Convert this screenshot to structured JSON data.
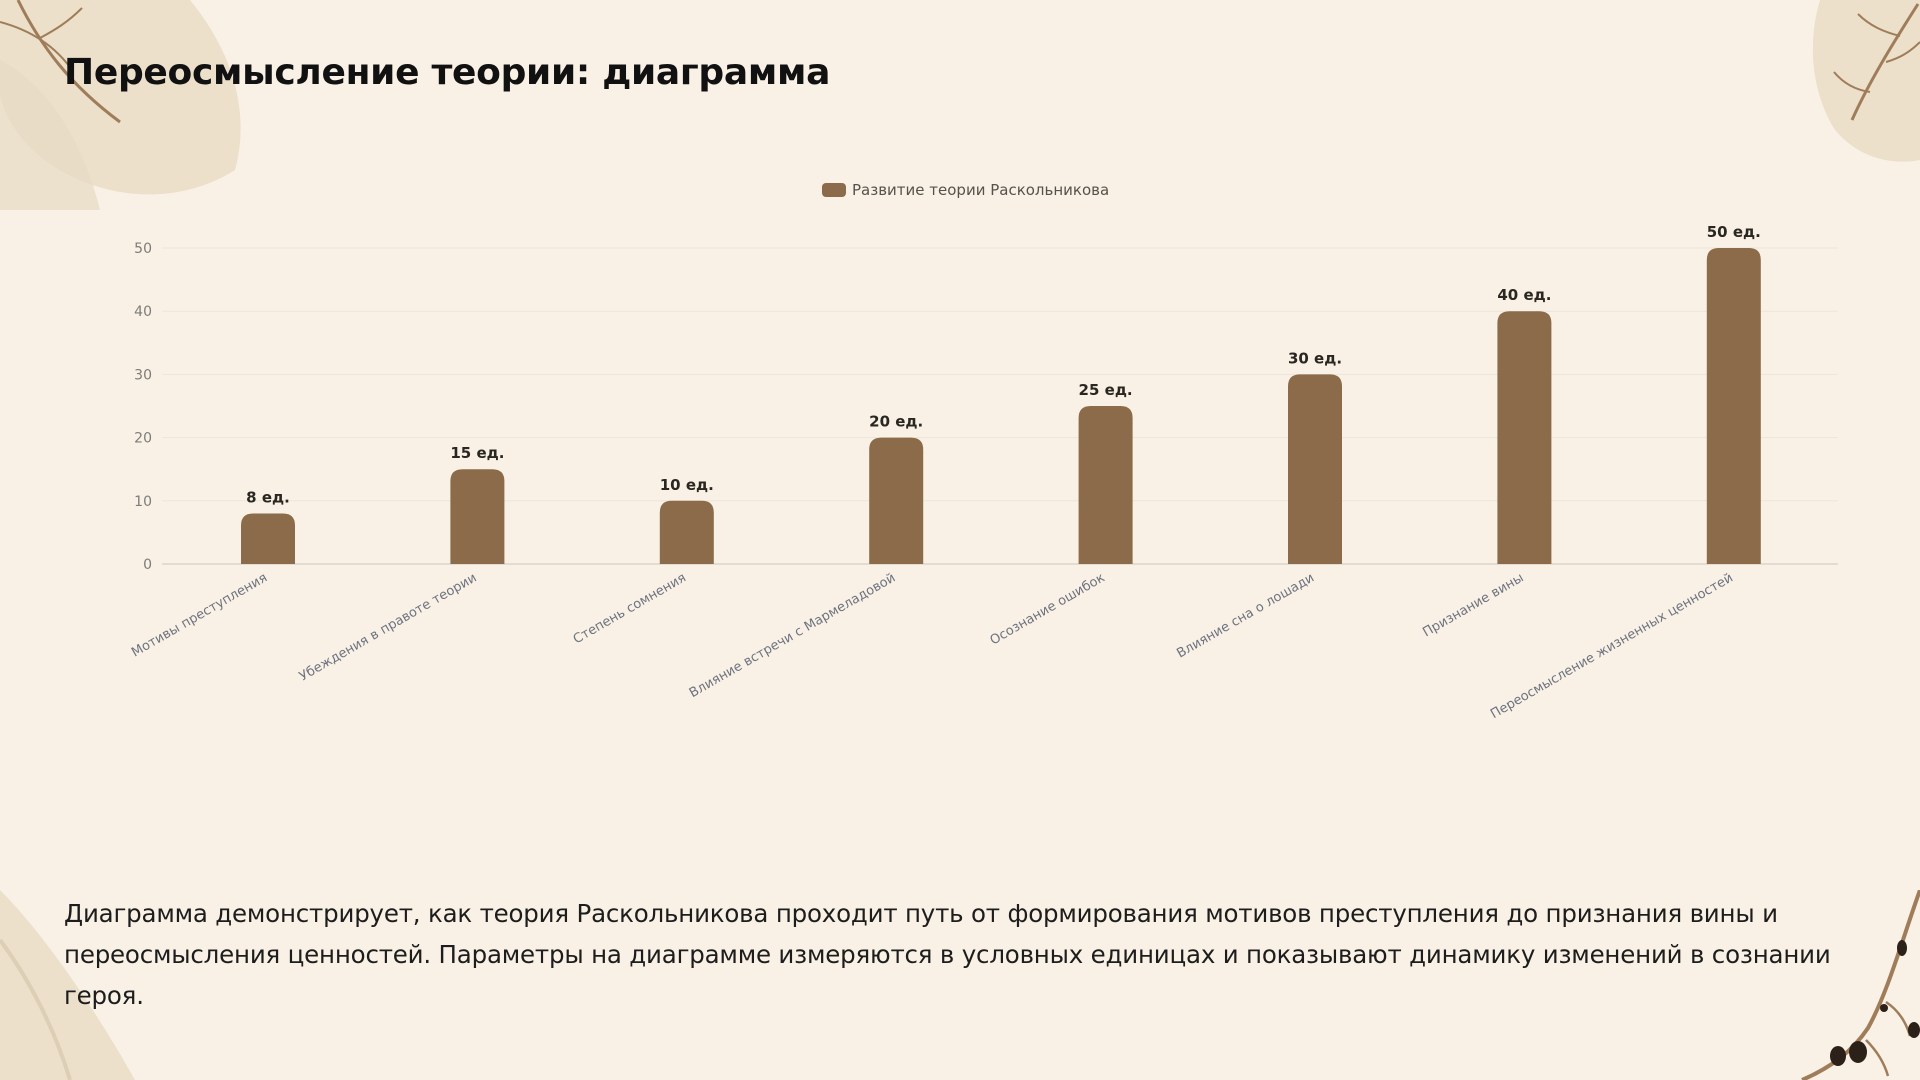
{
  "slide": {
    "title": "Переосмысление теории: диаграмма",
    "description": "Диаграмма демонстрирует, как теория Раскольникова проходит путь от формирования мотивов преступления до признания вины и переосмысления ценностей. Параметры на диаграмме измеряются в условных единицах и показывают динамику изменений в сознании героя."
  },
  "colors": {
    "background": "#f9f1e5",
    "bar": "#8b6b4a",
    "leaf": "#e8dcc6",
    "branch": "#a07d5a",
    "berry": "#2b2119"
  },
  "chart_data": {
    "type": "bar",
    "legend_position": "top-center",
    "grid": true,
    "categories": [
      "Мотивы преступления",
      "Убеждения в правоте теории",
      "Степень сомнения",
      "Влияние встречи с Мармеладовой",
      "Осознание ошибок",
      "Влияние сна о лошади",
      "Признание вины",
      "Переосмысление жизненных ценностей"
    ],
    "series": [
      {
        "name": "Развитие теории Раскольникова",
        "values": [
          8,
          15,
          10,
          20,
          25,
          30,
          40,
          50
        ],
        "labels": [
          "8 ед.",
          "15 ед.",
          "10 ед.",
          "20 ед.",
          "25 ед.",
          "30 ед.",
          "40 ед.",
          "50 ед."
        ],
        "color": "#8b6b4a"
      }
    ],
    "ylim": [
      0,
      50
    ],
    "yticks": [
      0,
      10,
      20,
      30,
      40,
      50
    ]
  }
}
